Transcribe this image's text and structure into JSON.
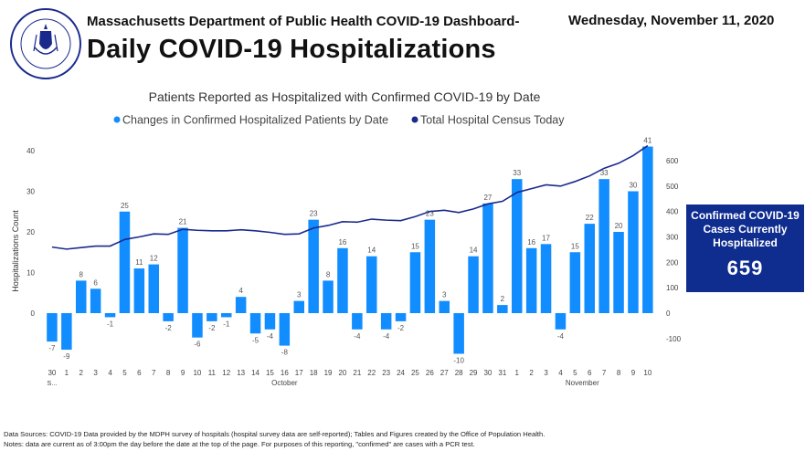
{
  "header": {
    "subtitle": "Massachusetts Department of Public Health COVID-19 Dashboard-",
    "date": "Wednesday, November 11, 2020",
    "title": "Daily COVID-19 Hospitalizations",
    "seal_text_top": "COMMONWEALTH OF MASSACHUSETTS",
    "seal_text_bottom": "DEPARTMENT OF PUBLIC HEALTH"
  },
  "kpi": {
    "label": "Confirmed COVID-19 Cases Currently Hospitalized",
    "value": "659"
  },
  "footer": {
    "line1": "Data Sources: COVID-19 Data provided by the MDPH survey of hospitals (hospital survey data are self-reported); Tables and Figures created by the Office of Population Health.",
    "line2": "Notes: data are current as of 3:00pm the day before the date at the top of the page. For purposes of this reporting, \"confirmed\" are cases with a PCR test."
  },
  "colors": {
    "bar": "#118dff",
    "line": "#1a2a8c",
    "kpi_bg": "#0f2c8f"
  },
  "chart_data": {
    "type": "bar",
    "title": "Patients Reported as Hospitalized with Confirmed COVID-19 by Date",
    "ylabel": "Hospitalizations Count",
    "y2label": "",
    "legend_position": "top-center",
    "grid": false,
    "categories": [
      "30",
      "1",
      "2",
      "3",
      "4",
      "5",
      "6",
      "7",
      "8",
      "9",
      "10",
      "11",
      "12",
      "13",
      "14",
      "15",
      "16",
      "17",
      "18",
      "19",
      "20",
      "21",
      "22",
      "23",
      "24",
      "25",
      "26",
      "27",
      "28",
      "29",
      "30",
      "31",
      "1",
      "2",
      "3",
      "4",
      "5",
      "6",
      "7",
      "8",
      "9",
      "10"
    ],
    "category_sublabels": [
      {
        "index": 0,
        "text": "S..."
      }
    ],
    "month_labels": [
      {
        "text": "October",
        "at_index": 16
      },
      {
        "text": "November",
        "at_index": 36.5
      }
    ],
    "ylim": [
      -14,
      45
    ],
    "y_ticks": [
      0,
      10,
      20,
      30,
      40
    ],
    "y2lim": [
      -140,
      645
    ],
    "y2_ticks": [
      -100,
      0,
      100,
      200,
      300,
      400,
      500,
      600
    ],
    "series": [
      {
        "name": "Changes in Confirmed Hospitalized Patients by Date",
        "kind": "bar",
        "values": [
          -7,
          -9,
          8,
          6,
          -1,
          25,
          11,
          12,
          -2,
          21,
          -6,
          -2,
          -1,
          4,
          -5,
          -4,
          -8,
          3,
          23,
          8,
          16,
          -4,
          14,
          -4,
          -2,
          15,
          23,
          3,
          -10,
          14,
          27,
          2,
          33,
          16,
          17,
          -4,
          15,
          22,
          33,
          20,
          30,
          41
        ]
      },
      {
        "name": "Total Hospital Census Today",
        "kind": "line",
        "axis": "right",
        "values": [
          260,
          252,
          258,
          264,
          264,
          290,
          300,
          312,
          310,
          330,
          326,
          324,
          324,
          328,
          324,
          318,
          310,
          312,
          335,
          345,
          360,
          358,
          370,
          366,
          364,
          380,
          400,
          405,
          396,
          410,
          430,
          440,
          475,
          490,
          505,
          500,
          518,
          540,
          570,
          590,
          620,
          659
        ]
      }
    ]
  }
}
